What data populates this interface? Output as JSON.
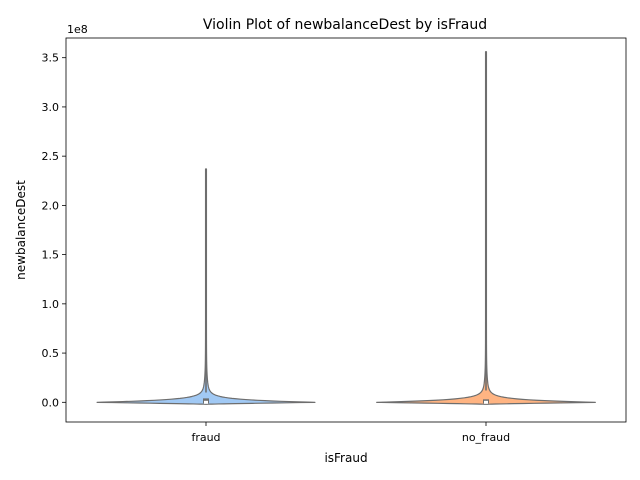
{
  "chart_data": {
    "type": "violin",
    "title": "Violin Plot of newbalanceDest by isFraud",
    "xlabel": "isFraud",
    "ylabel": "newbalanceDest",
    "y_scale_label": "1e8",
    "categories": [
      "fraud",
      "no_fraud"
    ],
    "ylim": [
      -0.2,
      3.7
    ],
    "y_ticks": [
      0.0,
      0.5,
      1.0,
      1.5,
      2.0,
      2.5,
      3.0,
      3.5
    ],
    "y_tick_labels": [
      "0.0",
      "0.5",
      "1.0",
      "1.5",
      "2.0",
      "2.5",
      "3.0",
      "3.5"
    ],
    "grid": false,
    "legend": "none",
    "series": [
      {
        "category": "fraud",
        "color": "#a1c9f4",
        "min": -0.02,
        "max": 2.37,
        "q1": -0.01,
        "median": 0.0,
        "q3": 0.04,
        "whisker_high": 0.1
      },
      {
        "category": "no_fraud",
        "color": "#ffb482",
        "min": -0.02,
        "max": 3.56,
        "q1": -0.01,
        "median": 0.0,
        "q3": 0.03,
        "whisker_high": 0.12
      }
    ]
  }
}
